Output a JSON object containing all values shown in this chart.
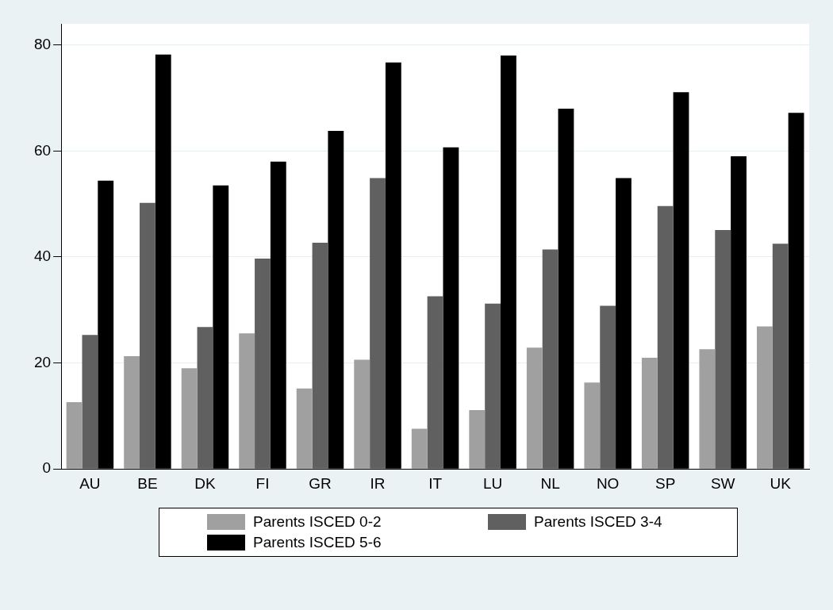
{
  "chart_data": {
    "type": "bar",
    "categories": [
      "AU",
      "BE",
      "DK",
      "FI",
      "GR",
      "IR",
      "IT",
      "LU",
      "NL",
      "NO",
      "SP",
      "SW",
      "UK"
    ],
    "series": [
      {
        "name": "Parents ISCED 0-2",
        "color": "#a0a0a0",
        "values": [
          12.6,
          21.3,
          19,
          25.6,
          15.2,
          20.6,
          7.6,
          11.1,
          22.9,
          16.3,
          21,
          22.6,
          26.9
        ]
      },
      {
        "name": "Parents ISCED 3-4",
        "color": "#606060",
        "values": [
          25.3,
          50.2,
          26.8,
          39.7,
          42.7,
          54.9,
          32.6,
          31.2,
          41.4,
          30.8,
          49.6,
          45.1,
          42.5
        ]
      },
      {
        "name": "Parents ISCED 5-6",
        "color": "#000000",
        "values": [
          54.4,
          78.2,
          53.5,
          58,
          63.8,
          76.7,
          60.7,
          78,
          68,
          54.9,
          71.1,
          59,
          67.2
        ]
      }
    ],
    "ylim": [
      0,
      84
    ],
    "yticks": [
      0,
      20,
      40,
      60,
      80
    ],
    "grid": "y",
    "legend": "bottom"
  }
}
